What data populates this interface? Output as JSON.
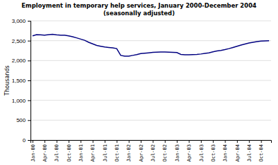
{
  "chart_data": {
    "type": "line",
    "title": "Employment in temporary help services, January 2000-December 2004",
    "subtitle": "(seasonally adjusted)",
    "y_label": "Thousands",
    "color": "#000080",
    "grid": true,
    "ylim": [
      0,
      3000
    ],
    "yticks": [
      0,
      500,
      {
        "value": 1000,
        "label": "1,000"
      },
      {
        "value": 1500,
        "label": "1,500"
      },
      {
        "value": 2000,
        "label": "2,000"
      },
      {
        "value": 2500,
        "label": "2,500"
      },
      {
        "value": 3000,
        "label": "3,000"
      }
    ],
    "categories": [
      "Jan-00",
      null,
      null,
      "Apr-00",
      null,
      null,
      "Jul-00",
      null,
      null,
      "Oct-00",
      null,
      null,
      "Jan-01",
      null,
      null,
      "Apr-01",
      null,
      null,
      "Jul-01",
      null,
      null,
      "Oct-01",
      null,
      null,
      "Jan-02",
      null,
      null,
      "Apr-02",
      null,
      null,
      "Jul-02",
      null,
      null,
      "Oct-02",
      null,
      null,
      "Jan-03",
      null,
      null,
      "Apr-03",
      null,
      null,
      "Jul-03",
      null,
      null,
      "Oct-03",
      null,
      null,
      "Jan-04",
      null,
      null,
      "Apr-04",
      null,
      null,
      "Jul-04",
      null,
      null,
      "Oct-04",
      null,
      null
    ],
    "values": [
      2620,
      2650,
      2645,
      2640,
      2650,
      2660,
      2645,
      2640,
      2640,
      2620,
      2600,
      2570,
      2540,
      2510,
      2460,
      2420,
      2380,
      2360,
      2340,
      2330,
      2320,
      2300,
      2130,
      2110,
      2110,
      2130,
      2150,
      2175,
      2185,
      2195,
      2205,
      2210,
      2215,
      2215,
      2210,
      2205,
      2200,
      2155,
      2145,
      2145,
      2150,
      2155,
      2165,
      2180,
      2195,
      2220,
      2240,
      2255,
      2275,
      2300,
      2330,
      2360,
      2390,
      2415,
      2440,
      2460,
      2475,
      2490,
      2495,
      2500
    ]
  }
}
